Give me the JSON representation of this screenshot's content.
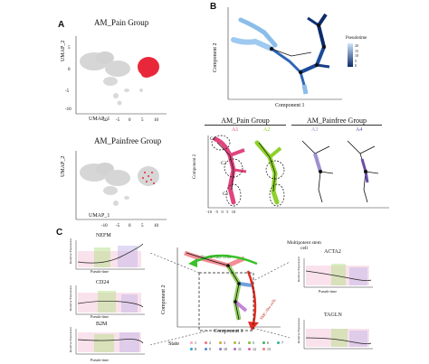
{
  "panels": {
    "a": {
      "letter": "A",
      "top_title": "AM_Pain Group",
      "bottom_title": "AM_Painfree Group",
      "xlabel": "UMAP_1",
      "ylabel": "UMAP_2",
      "xticks": [
        "-10",
        "-5",
        "0",
        "5",
        "10"
      ],
      "yticks": [
        "5",
        "0",
        "-5",
        "-10"
      ]
    },
    "b": {
      "letter": "B",
      "xlabel": "Component 1",
      "ylabel": "Component 2",
      "colorbar_label": "Pseudotime",
      "colorbar_ticks": [
        "20",
        "15",
        "10",
        "5",
        "0"
      ],
      "group_left": "AM_Pain Group",
      "group_right": "AM_Painfree Group",
      "facets": [
        "A1",
        "A2",
        "A3",
        "A4"
      ],
      "facet_ylabel": "Component 2",
      "facet_xticks": [
        "-10",
        "-5",
        "0",
        "5",
        "10"
      ],
      "cluster_labels": [
        "C1",
        "C2",
        "C3"
      ]
    },
    "c": {
      "letter": "C",
      "genes_left": [
        "NEFM",
        "CD24",
        "B2M"
      ],
      "genes_right": [
        "ACTA2",
        "TAGLN"
      ],
      "gene_xlabel": "Pseudo-time",
      "gene_ylabel": "Relative Expression",
      "center_xlabel": "Component 1",
      "center_ylabel": "Component 2",
      "annotation_neural": "Neural-like cells",
      "annotation_multipotent": "Multipotent stem cell",
      "annotation_smooth": "SMC-like cells",
      "legend_title": "State",
      "states": [
        "1",
        "2",
        "3",
        "4",
        "5",
        "6",
        "7",
        "8",
        "9",
        "10",
        "11",
        "12",
        "13"
      ]
    }
  },
  "colors": {
    "pain": "#e8283a",
    "grey_cells": "#d6d6d6",
    "pseudotime_dark": "#0d2b6b",
    "pseudotime_light": "#9ec9f0",
    "facet_a1": "#e0457e",
    "facet_a2": "#8dd12a",
    "facet_a3": "#9d8fd0",
    "facet_a4": "#6a4ca8",
    "arrow_green": "#39c229",
    "arrow_red": "#e52a1f",
    "state_colors": [
      "#f7a6c0",
      "#f2707a",
      "#d9a43a",
      "#b7b72f",
      "#78c23a",
      "#3cb55b",
      "#2db59a",
      "#2aa6c9",
      "#4b8ad6",
      "#8a79d9",
      "#b667d0",
      "#e05fae",
      "#ef7c7c"
    ]
  }
}
